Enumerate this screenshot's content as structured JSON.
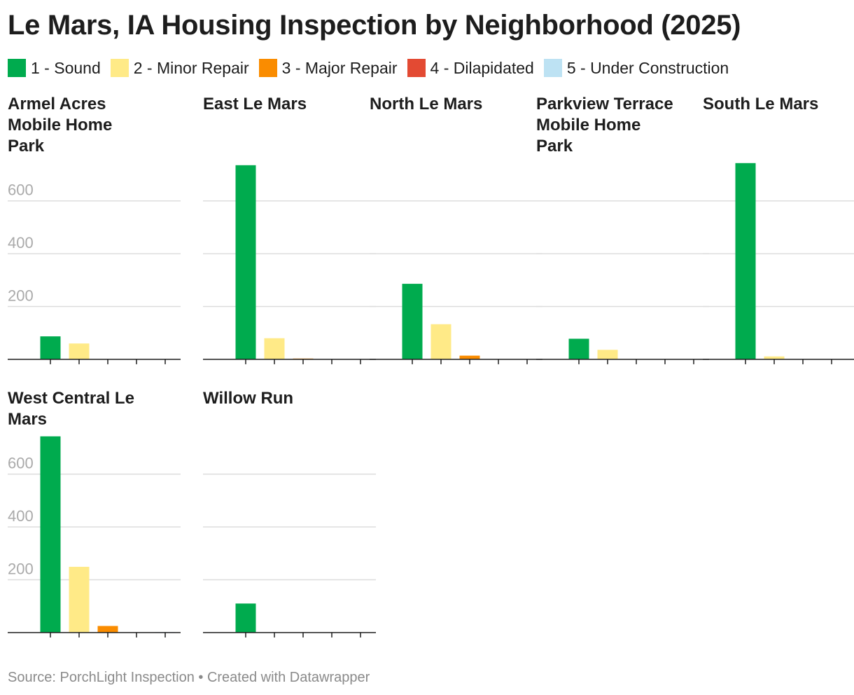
{
  "title": "Le Mars, IA Housing Inspection by Neighborhood (2025)",
  "source": "Source: PorchLight Inspection • Created with Datawrapper",
  "legend": [
    {
      "label": "1 - Sound",
      "color": "#00ab4e"
    },
    {
      "label": "2 - Minor Repair",
      "color": "#ffea87"
    },
    {
      "label": "3 - Major Repair",
      "color": "#fa8c00"
    },
    {
      "label": "4 - Dilapidated",
      "color": "#e34a33"
    },
    {
      "label": "5 - Under Construction",
      "color": "#bde2f3"
    }
  ],
  "chart_data": {
    "type": "bar",
    "layout": "small-multiples",
    "title": "Le Mars, IA Housing Inspection by Neighborhood (2025)",
    "categories": [
      "1 - Sound",
      "2 - Minor Repair",
      "3 - Major Repair",
      "4 - Dilapidated",
      "5 - Under Construction"
    ],
    "colors": [
      "#00ab4e",
      "#ffea87",
      "#fa8c00",
      "#e34a33",
      "#bde2f3"
    ],
    "ylim": [
      0,
      720
    ],
    "yticks": [
      200,
      400,
      600
    ],
    "grid": true,
    "xlabel": "",
    "ylabel": "",
    "panels": [
      {
        "name": "Armel Acres Mobile Home Park",
        "values": [
          87,
          60,
          0,
          0,
          0
        ]
      },
      {
        "name": "East Le Mars",
        "values": [
          735,
          80,
          3,
          0,
          0
        ]
      },
      {
        "name": "North Le Mars",
        "values": [
          286,
          133,
          14,
          0,
          0
        ]
      },
      {
        "name": "Parkview Terrace Mobile Home Park",
        "values": [
          78,
          36,
          0,
          0,
          0
        ]
      },
      {
        "name": "South Le Mars",
        "values": [
          743,
          11,
          0,
          0,
          2
        ]
      },
      {
        "name": "West Central Le Mars",
        "values": [
          743,
          249,
          25,
          0,
          2
        ]
      },
      {
        "name": "Willow Run",
        "values": [
          110,
          0,
          0,
          0,
          0
        ]
      }
    ]
  }
}
